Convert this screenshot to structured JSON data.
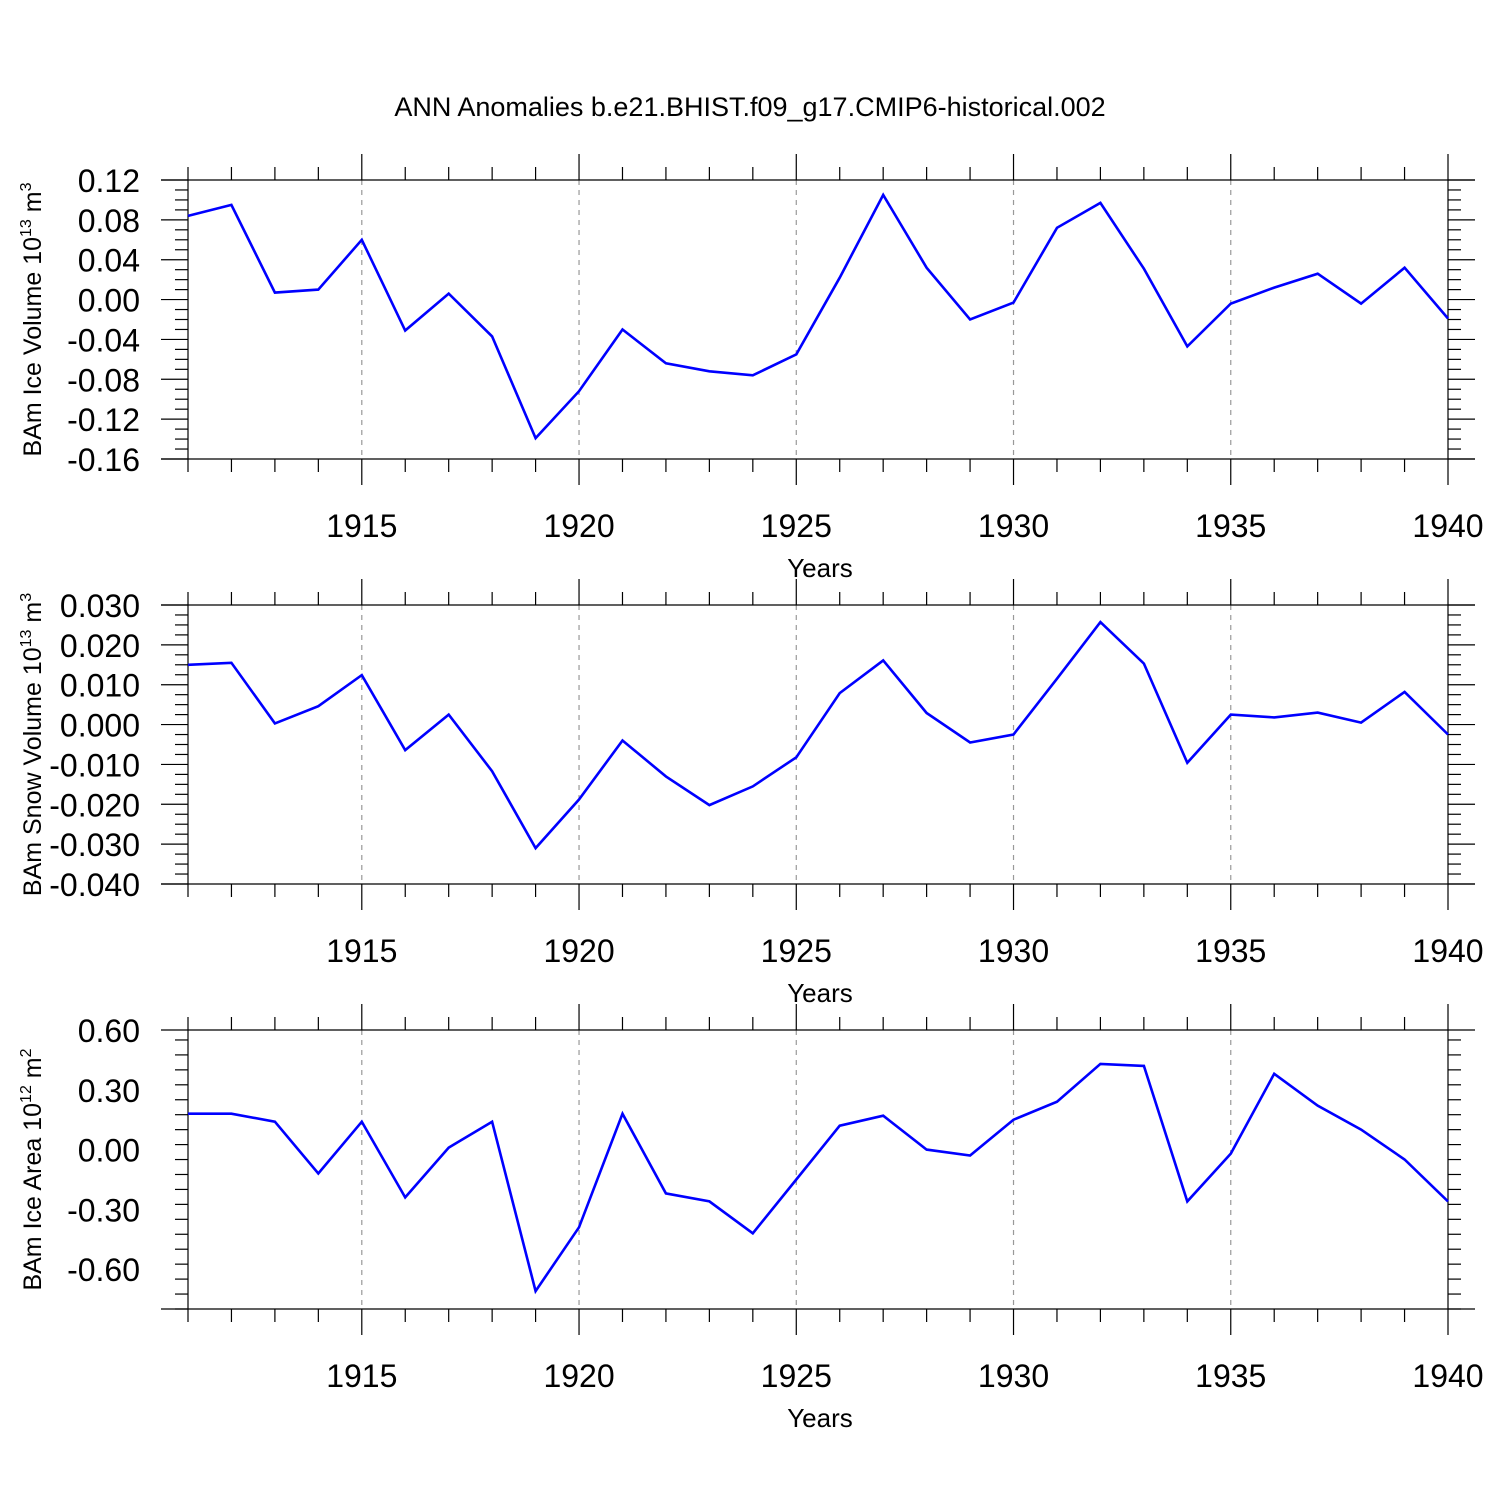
{
  "figure": {
    "title": "ANN Anomalies b.e21.BHIST.f09_g17.CMIP6-historical.002",
    "line_color": "#0000ff",
    "grid_color": "#999999"
  },
  "chart_data": [
    {
      "type": "line",
      "ylabel_prefix": "BAm Ice Volume 10",
      "ylabel_exp": "13",
      "ylabel_unit": " m",
      "ylabel_unit_exp": "3",
      "xlabel": "Years",
      "xlim": [
        1911,
        1940
      ],
      "ylim": [
        -0.16,
        0.12
      ],
      "yticks": [
        0.12,
        0.08,
        0.04,
        0.0,
        -0.04,
        -0.08,
        -0.12,
        -0.16
      ],
      "ytick_labels": [
        "0.12",
        "0.08",
        "0.04",
        "0.00",
        "-0.04",
        "-0.08",
        "-0.12",
        "-0.16"
      ],
      "xticks": [
        1915,
        1920,
        1925,
        1930,
        1935,
        1940
      ],
      "xtick_labels": [
        "1915",
        "1920",
        "1925",
        "1930",
        "1935",
        "1940"
      ],
      "grid": "vertical dashed at major x ticks",
      "x": [
        1911,
        1912,
        1913,
        1914,
        1915,
        1916,
        1917,
        1918,
        1919,
        1920,
        1921,
        1922,
        1923,
        1924,
        1925,
        1926,
        1927,
        1928,
        1929,
        1930,
        1931,
        1932,
        1933,
        1934,
        1935,
        1936,
        1937,
        1938,
        1939,
        1940
      ],
      "series": [
        {
          "values": [
            0.084,
            0.095,
            0.007,
            0.01,
            0.06,
            -0.031,
            0.006,
            -0.037,
            -0.139,
            -0.092,
            -0.03,
            -0.064,
            -0.072,
            -0.076,
            -0.055,
            0.022,
            0.105,
            0.032,
            -0.02,
            -0.003,
            0.072,
            0.097,
            0.031,
            -0.047,
            -0.004,
            0.012,
            0.026,
            -0.004,
            0.032,
            -0.019
          ]
        }
      ]
    },
    {
      "type": "line",
      "ylabel_prefix": "BAm Snow Volume 10",
      "ylabel_exp": "13",
      "ylabel_unit": " m",
      "ylabel_unit_exp": "3",
      "xlabel": "Years",
      "xlim": [
        1911,
        1940
      ],
      "ylim": [
        -0.04,
        0.03
      ],
      "yticks": [
        0.03,
        0.02,
        0.01,
        0.0,
        -0.01,
        -0.02,
        -0.03,
        -0.04
      ],
      "ytick_labels": [
        "0.030",
        "0.020",
        "0.010",
        "0.000",
        "-0.010",
        "-0.020",
        "-0.030",
        "-0.040"
      ],
      "xticks": [
        1915,
        1920,
        1925,
        1930,
        1935,
        1940
      ],
      "xtick_labels": [
        "1915",
        "1920",
        "1925",
        "1930",
        "1935",
        "1940"
      ],
      "grid": "vertical dashed at major x ticks",
      "x": [
        1911,
        1912,
        1913,
        1914,
        1915,
        1916,
        1917,
        1918,
        1919,
        1920,
        1921,
        1922,
        1923,
        1924,
        1925,
        1926,
        1927,
        1928,
        1929,
        1930,
        1931,
        1932,
        1933,
        1934,
        1935,
        1936,
        1937,
        1938,
        1939,
        1940
      ],
      "series": [
        {
          "values": [
            0.015,
            0.0155,
            0.0003,
            0.0046,
            0.0124,
            -0.0064,
            0.0025,
            -0.0117,
            -0.031,
            -0.0188,
            -0.004,
            -0.013,
            -0.0202,
            -0.0155,
            -0.0082,
            0.0079,
            0.0161,
            0.0029,
            -0.0045,
            -0.0025,
            0.0115,
            0.0257,
            0.0153,
            -0.0096,
            0.0025,
            0.0018,
            0.003,
            0.0005,
            0.0082,
            -0.0025
          ]
        }
      ]
    },
    {
      "type": "line",
      "ylabel_prefix": "BAm Ice Area 10",
      "ylabel_exp": "12",
      "ylabel_unit": " m",
      "ylabel_unit_exp": "2",
      "xlabel": "Years",
      "xlim": [
        1911,
        1940
      ],
      "ylim": [
        -0.8,
        0.6
      ],
      "yticks": [
        0.6,
        0.3,
        0.0,
        -0.3,
        -0.6
      ],
      "ytick_labels": [
        "0.60",
        "0.30",
        "0.00",
        "-0.30",
        "-0.60"
      ],
      "xticks": [
        1915,
        1920,
        1925,
        1930,
        1935,
        1940
      ],
      "xtick_labels": [
        "1915",
        "1920",
        "1925",
        "1930",
        "1935",
        "1940"
      ],
      "grid": "vertical dashed at major x ticks",
      "x": [
        1911,
        1912,
        1913,
        1914,
        1915,
        1916,
        1917,
        1918,
        1919,
        1920,
        1921,
        1922,
        1923,
        1924,
        1925,
        1926,
        1927,
        1928,
        1929,
        1930,
        1931,
        1932,
        1933,
        1934,
        1935,
        1936,
        1937,
        1938,
        1939,
        1940
      ],
      "series": [
        {
          "values": [
            0.18,
            0.18,
            0.14,
            -0.12,
            0.14,
            -0.24,
            0.01,
            0.14,
            -0.71,
            -0.39,
            0.18,
            -0.22,
            -0.26,
            -0.42,
            -0.15,
            0.12,
            0.17,
            0.0,
            -0.03,
            0.15,
            0.24,
            0.43,
            0.42,
            -0.26,
            -0.02,
            0.38,
            0.22,
            0.1,
            -0.05,
            -0.26
          ]
        }
      ]
    }
  ]
}
